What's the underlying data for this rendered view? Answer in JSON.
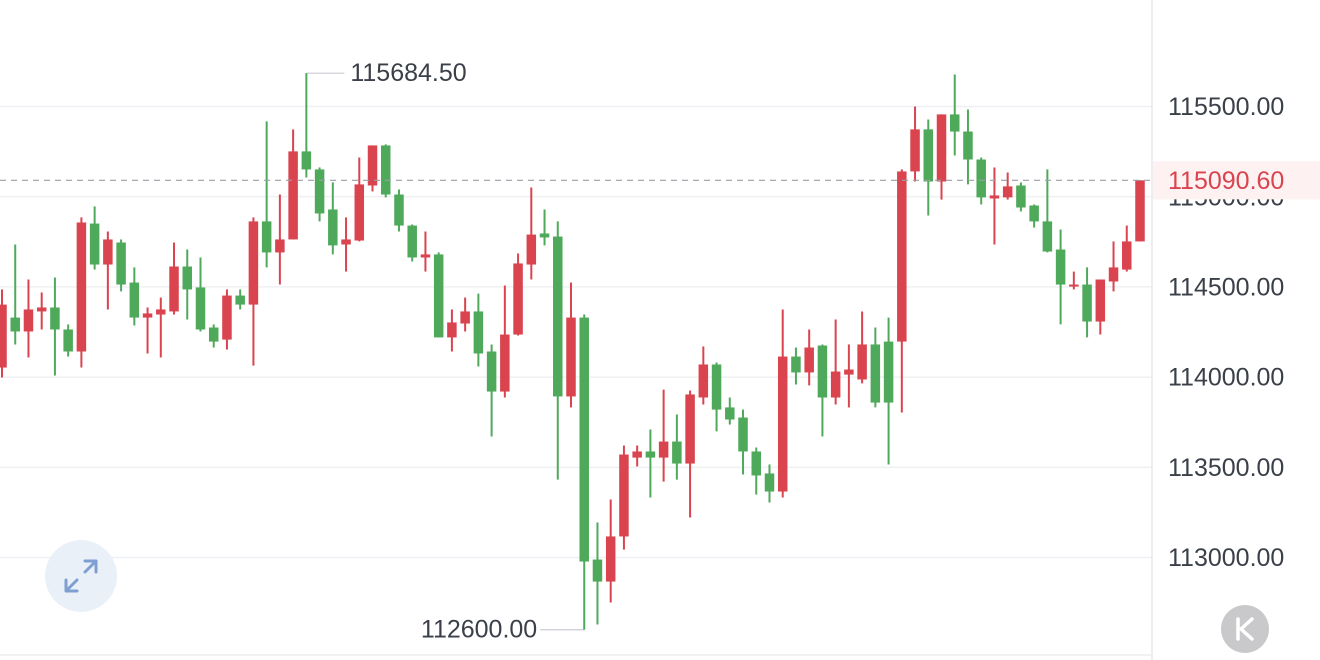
{
  "chart_data": {
    "type": "candlestick",
    "up_color": "#d9444f",
    "down_color": "#4fa95b",
    "grid": true,
    "ylim": [
      112460,
      116090
    ],
    "yticks": [
      {
        "value": 113000,
        "label": "113000.00"
      },
      {
        "value": 113500,
        "label": "113500.00"
      },
      {
        "value": 114000,
        "label": "114000.00"
      },
      {
        "value": 114500,
        "label": "114500.00"
      },
      {
        "value": 115000,
        "label": "115000.00"
      },
      {
        "value": 115500,
        "label": "115500.00"
      }
    ],
    "last_price": {
      "value": 115090.6,
      "label": "115090.60"
    },
    "annotations": [
      {
        "value": 115684.5,
        "label": "115684.50"
      },
      {
        "value": 112600,
        "label": "112600.00"
      }
    ],
    "ohlc": [
      [
        114053,
        114486,
        113998,
        114402
      ],
      [
        114330,
        114735,
        114181,
        114253
      ],
      [
        114253,
        114541,
        114109,
        114375
      ],
      [
        114364,
        114469,
        114264,
        114386
      ],
      [
        114386,
        114552,
        114009,
        114264
      ],
      [
        114264,
        114292,
        114114,
        114142
      ],
      [
        114142,
        114885,
        114053,
        114857
      ],
      [
        114851,
        114946,
        114596,
        114624
      ],
      [
        114624,
        114807,
        114375,
        114763
      ],
      [
        114746,
        114763,
        114475,
        114513
      ],
      [
        114524,
        114608,
        114286,
        114330
      ],
      [
        114330,
        114386,
        114131,
        114353
      ],
      [
        114347,
        114441,
        114109,
        114375
      ],
      [
        114364,
        114746,
        114347,
        114613
      ],
      [
        114613,
        114707,
        114319,
        114486
      ],
      [
        114497,
        114663,
        114253,
        114264
      ],
      [
        114275,
        114292,
        114164,
        114197
      ],
      [
        114208,
        114486,
        114153,
        114452
      ],
      [
        114452,
        114486,
        114375,
        114402
      ],
      [
        114402,
        114885,
        114064,
        114863
      ],
      [
        114863,
        115417,
        114608,
        114691
      ],
      [
        114691,
        115012,
        114513,
        114763
      ],
      [
        114763,
        115373,
        114763,
        115251
      ],
      [
        115251,
        115684.5,
        115106,
        115151
      ],
      [
        115151,
        115162,
        114863,
        114907
      ],
      [
        114929,
        115079,
        114680,
        114730
      ],
      [
        114735,
        114885,
        114585,
        114763
      ],
      [
        114757,
        115217,
        114752,
        115068
      ],
      [
        115062,
        115284,
        115029,
        115284
      ],
      [
        115284,
        115290,
        114996,
        115012
      ],
      [
        115012,
        115040,
        114807,
        114840
      ],
      [
        114840,
        114846,
        114641,
        114663
      ],
      [
        114663,
        114807,
        114585,
        114680
      ],
      [
        114680,
        114691,
        114220,
        114220
      ],
      [
        114220,
        114375,
        114142,
        114303
      ],
      [
        114297,
        114441,
        114253,
        114364
      ],
      [
        114364,
        114463,
        114059,
        114131
      ],
      [
        114142,
        114181,
        113671,
        113920
      ],
      [
        113920,
        114508,
        113887,
        114236
      ],
      [
        114236,
        114685,
        114231,
        114630
      ],
      [
        114624,
        115051,
        114541,
        114790
      ],
      [
        114796,
        114929,
        114730,
        114774
      ],
      [
        114779,
        114863,
        113432,
        113893
      ],
      [
        113893,
        114524,
        113832,
        114330
      ],
      [
        114330,
        114347,
        112600,
        112978
      ],
      [
        112989,
        113194,
        112629,
        112867
      ],
      [
        112867,
        113322,
        112751,
        113117
      ],
      [
        113117,
        113621,
        113044,
        113571
      ],
      [
        113554,
        113621,
        113505,
        113588
      ],
      [
        113588,
        113710,
        113333,
        113554
      ],
      [
        113554,
        113931,
        113421,
        113643
      ],
      [
        113643,
        113793,
        113432,
        113521
      ],
      [
        113521,
        113926,
        113222,
        113904
      ],
      [
        113887,
        114170,
        113848,
        114070
      ],
      [
        114070,
        114081,
        113699,
        113820
      ],
      [
        113832,
        113887,
        113737,
        113765
      ],
      [
        113776,
        113820,
        113460,
        113588
      ],
      [
        113588,
        113610,
        113349,
        113455
      ],
      [
        113466,
        113516,
        113305,
        113366
      ],
      [
        113366,
        114375,
        113333,
        114114
      ],
      [
        114114,
        114164,
        113959,
        114026
      ],
      [
        114026,
        114264,
        113954,
        114164
      ],
      [
        114175,
        114181,
        113671,
        113887
      ],
      [
        113887,
        114319,
        113848,
        114031
      ],
      [
        114014,
        114181,
        113832,
        114042
      ],
      [
        113987,
        114364,
        113965,
        114181
      ],
      [
        114181,
        114275,
        113832,
        113859
      ],
      [
        114197,
        114330,
        113516,
        113859
      ],
      [
        114197,
        115151,
        113804,
        115140
      ],
      [
        115140,
        115500,
        115084,
        115373
      ],
      [
        115373,
        115428,
        114896,
        115084
      ],
      [
        115084,
        115456,
        114984,
        115456
      ],
      [
        115456,
        115677,
        115228,
        115361
      ],
      [
        115361,
        115483,
        115068,
        115206
      ],
      [
        115206,
        115217,
        114957,
        114996
      ],
      [
        114990,
        115162,
        114735,
        115007
      ],
      [
        114996,
        115134,
        114984,
        115057
      ],
      [
        115062,
        115079,
        114918,
        114940
      ],
      [
        114951,
        114957,
        114829,
        114863
      ],
      [
        114863,
        115151,
        114691,
        114696
      ],
      [
        114707,
        114818,
        114292,
        114513
      ],
      [
        114502,
        114585,
        114486,
        114513
      ],
      [
        114513,
        114608,
        114220,
        114308
      ],
      [
        114308,
        114541,
        114236,
        114541
      ],
      [
        114530,
        114752,
        114475,
        114608
      ],
      [
        114596,
        114840,
        114585,
        114752
      ],
      [
        114752,
        115090.6,
        114752,
        115090.6
      ]
    ]
  }
}
